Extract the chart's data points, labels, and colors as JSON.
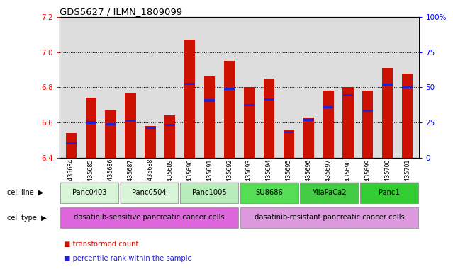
{
  "title": "GDS5627 / ILMN_1809099",
  "samples": [
    "GSM1435684",
    "GSM1435685",
    "GSM1435686",
    "GSM1435687",
    "GSM1435688",
    "GSM1435689",
    "GSM1435690",
    "GSM1435691",
    "GSM1435692",
    "GSM1435693",
    "GSM1435694",
    "GSM1435695",
    "GSM1435696",
    "GSM1435697",
    "GSM1435698",
    "GSM1435699",
    "GSM1435700",
    "GSM1435701"
  ],
  "bar_values": [
    6.54,
    6.74,
    6.67,
    6.77,
    6.58,
    6.64,
    7.07,
    6.86,
    6.95,
    6.8,
    6.85,
    6.56,
    6.63,
    6.78,
    6.8,
    6.78,
    6.91,
    6.88
  ],
  "percentile_values": [
    6.48,
    6.6,
    6.59,
    6.61,
    6.57,
    6.585,
    6.82,
    6.725,
    6.79,
    6.7,
    6.73,
    6.545,
    6.615,
    6.685,
    6.755,
    6.665,
    6.815,
    6.8
  ],
  "ymin": 6.4,
  "ymax": 7.2,
  "yticks_left": [
    6.4,
    6.6,
    6.8,
    7.0,
    7.2
  ],
  "yticks_right": [
    0,
    25,
    50,
    75,
    100
  ],
  "yticks_right_labels": [
    "0",
    "25",
    "50",
    "75",
    "100%"
  ],
  "bar_color": "#cc1100",
  "percentile_color": "#2222cc",
  "cell_lines": [
    {
      "label": "Panc0403",
      "start": 0,
      "end": 2,
      "color": "#d8f5d8"
    },
    {
      "label": "Panc0504",
      "start": 3,
      "end": 5,
      "color": "#d8f5d8"
    },
    {
      "label": "Panc1005",
      "start": 6,
      "end": 8,
      "color": "#b8edbb"
    },
    {
      "label": "SU8686",
      "start": 9,
      "end": 11,
      "color": "#55dd55"
    },
    {
      "label": "MiaPaCa2",
      "start": 12,
      "end": 14,
      "color": "#44cc44"
    },
    {
      "label": "Panc1",
      "start": 15,
      "end": 17,
      "color": "#33cc33"
    }
  ],
  "cell_types": [
    {
      "label": "dasatinib-sensitive pancreatic cancer cells",
      "start": 0,
      "end": 8,
      "color": "#dd66dd"
    },
    {
      "label": "dasatinib-resistant pancreatic cancer cells",
      "start": 9,
      "end": 17,
      "color": "#dd99dd"
    }
  ],
  "sample_bg_color": "#dddddd",
  "grid_color": "#000000",
  "bar_width": 0.55
}
